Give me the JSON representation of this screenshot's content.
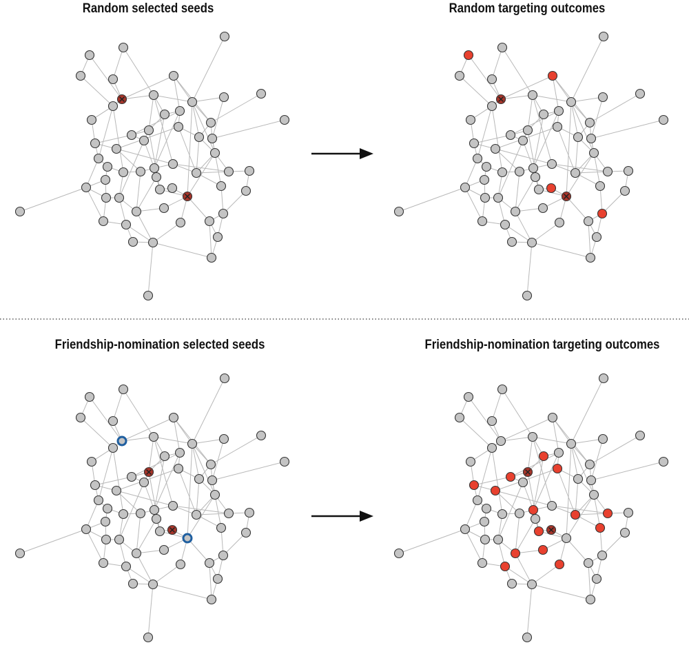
{
  "panels": [
    {
      "title": "Random selected seeds",
      "seeds": [
        7,
        43
      ],
      "nominated": [],
      "adopted": []
    },
    {
      "title": "Random targeting outcomes",
      "seeds": [
        7,
        43
      ],
      "nominated": [],
      "adopted": [
        3,
        6,
        40,
        49
      ]
    },
    {
      "title": "Friendship-nomination selected seeds",
      "seeds": [
        18,
        40
      ],
      "nominated": [
        7,
        43
      ],
      "adopted": []
    },
    {
      "title": "Friendship-nomination targeting outcomes",
      "seeds": [
        18,
        40
      ],
      "nominated": [],
      "adopted": [
        14,
        19,
        20,
        24,
        25,
        31,
        34,
        35,
        39,
        41,
        47,
        48,
        51,
        52
      ]
    }
  ],
  "colors": {
    "node": "#c4c4c4",
    "adopted": "#e8412f",
    "seed": "#a8352a",
    "nominated": "#1f5fa0",
    "edge": "#b8b8b8"
  }
}
